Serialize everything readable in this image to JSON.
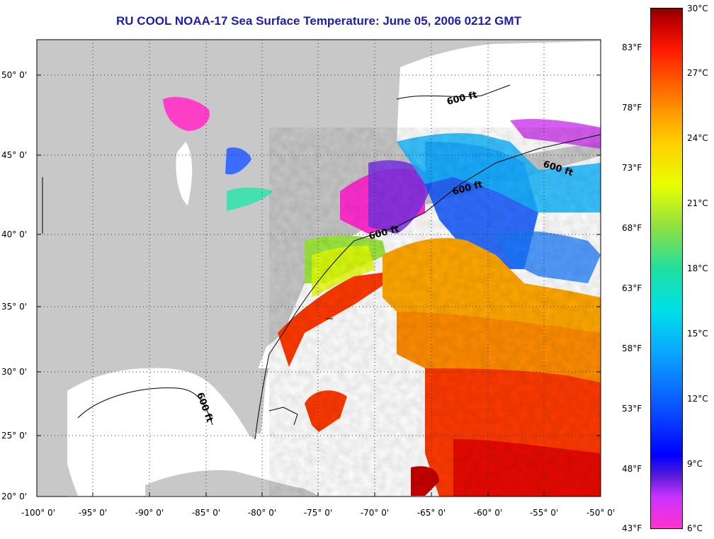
{
  "title": "RU COOL  NOAA-17  Sea Surface Temperature:  June 05, 2006 0212 GMT",
  "lat_labels": [
    "50° 0'",
    "45° 0'",
    "40° 0'",
    "35° 0'",
    "30° 0'",
    "25° 0'",
    "20° 0'"
  ],
  "lon_labels": [
    "-100° 0'",
    "-95° 0'",
    "-90° 0'",
    "-85° 0'",
    "-80° 0'",
    "-75° 0'",
    "-70° 0'",
    "-65° 0'",
    "-60° 0'",
    "-55° 0'",
    "-50° 0'"
  ],
  "isobath_labels": [
    "600 ft",
    "600 ft",
    "600 ft",
    "600 ft",
    "600 ft"
  ],
  "colorbar": {
    "celsius": [
      "30°C",
      "27°C",
      "24°C",
      "21°C",
      "18°C",
      "15°C",
      "12°C",
      "9°C",
      "6°C"
    ],
    "fahrenheit": [
      "83°F",
      "78°F",
      "73°F",
      "68°F",
      "63°F",
      "58°F",
      "53°F",
      "48°F",
      "43°F"
    ]
  },
  "colors": {
    "land": "#c8c8c8",
    "no_data": "#ffffff",
    "title": "#1c1cb4"
  }
}
